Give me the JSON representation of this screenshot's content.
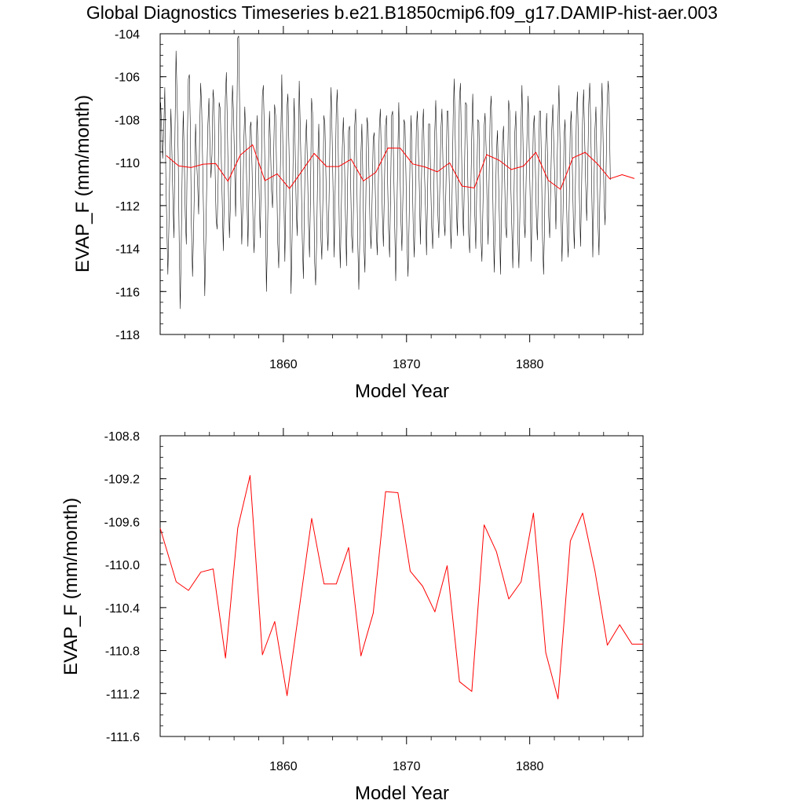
{
  "title": "Global Diagnostics Timeseries b.e21.B1850cmip6.f09_g17.DAMIP-hist-aer.003",
  "colors": {
    "monthly": "#000000",
    "annual": "#ff0000",
    "axis": "#000000"
  },
  "chart_data": [
    {
      "type": "line",
      "xlabel": "Model Year",
      "ylabel": "EVAP_F (mm/month)",
      "xlim": [
        1850,
        1889.2
      ],
      "ylim": [
        -118,
        -104
      ],
      "xticks": [
        1860,
        1870,
        1880
      ],
      "xtick_labels": [
        "1860",
        "1870",
        "1880"
      ],
      "yticks": [
        -118,
        -116,
        -114,
        -112,
        -110,
        -108,
        -106,
        -104
      ],
      "ytick_labels": [
        "-118",
        "-116",
        "-114",
        "-112",
        "-110",
        "-108",
        "-106",
        "-104"
      ],
      "series": [
        {
          "style": "thin black monthly line",
          "x_start": 1850.04,
          "x_step": 0.0833333,
          "values": [
            -107.2,
            -108.4,
            -109.8,
            -108.6,
            -106.5,
            -110.6,
            -113.0,
            -115.2,
            -113.0,
            -109.8,
            -107.5,
            -109.6,
            -111.8,
            -113.5,
            -108.5,
            -104.8,
            -106.9,
            -109.5,
            -113.6,
            -116.8,
            -114.0,
            -110.2,
            -107.6,
            -109.8,
            -112.5,
            -113.8,
            -109.0,
            -106.1,
            -105.9,
            -108.6,
            -112.9,
            -115.3,
            -113.3,
            -110.7,
            -108.2,
            -109.9,
            -111.0,
            -112.4,
            -108.6,
            -106.3,
            -107.5,
            -110.2,
            -113.0,
            -116.2,
            -113.5,
            -110.5,
            -108.2,
            -107.0,
            -109.2,
            -110.7,
            -109.6,
            -106.6,
            -107.2,
            -110.2,
            -112.6,
            -113.1,
            -110.9,
            -107.2,
            -107.5,
            -109.7,
            -111.9,
            -114.1,
            -111.5,
            -107.0,
            -105.8,
            -108.3,
            -111.3,
            -113.5,
            -111.9,
            -108.7,
            -106.4,
            -107.8,
            -110.2,
            -112.5,
            -109.2,
            -104.2,
            -104.1,
            -107.6,
            -111.2,
            -113.8,
            -112.2,
            -109.1,
            -107.4,
            -108.9,
            -111.4,
            -113.9,
            -111.2,
            -108.4,
            -108.1,
            -110.2,
            -112.8,
            -114.2,
            -112.4,
            -109.4,
            -107.8,
            -109.6,
            -111.5,
            -113.5,
            -110.6,
            -106.9,
            -106.4,
            -108.6,
            -111.7,
            -116.0,
            -113.7,
            -110.3,
            -107.6,
            -109.2,
            -111.3,
            -112.1,
            -110.0,
            -107.3,
            -107.8,
            -110.6,
            -113.7,
            -114.9,
            -112.1,
            -109.0,
            -105.9,
            -109.1,
            -111.4,
            -114.6,
            -111.6,
            -107.5,
            -106.8,
            -109.4,
            -112.3,
            -116.1,
            -113.5,
            -109.8,
            -107.0,
            -109.3,
            -112.0,
            -113.4,
            -110.0,
            -106.2,
            -108.3,
            -110.7,
            -113.6,
            -115.4,
            -112.0,
            -109.2,
            -108.0,
            -110.2,
            -112.8,
            -114.4,
            -111.4,
            -107.0,
            -107.7,
            -110.7,
            -114.6,
            -115.7,
            -113.5,
            -110.0,
            -108.2,
            -110.8,
            -113.4,
            -114.5,
            -111.8,
            -107.8,
            -108.2,
            -110.6,
            -112.8,
            -114.1,
            -111.9,
            -108.7,
            -106.5,
            -108.8,
            -111.5,
            -114.4,
            -111.2,
            -107.7,
            -106.6,
            -109.4,
            -112.9,
            -114.9,
            -112.2,
            -109.3,
            -107.9,
            -109.8,
            -112.5,
            -114.8,
            -111.2,
            -108.5,
            -108.3,
            -110.7,
            -113.4,
            -114.2,
            -111.7,
            -108.3,
            -107.5,
            -110.4,
            -113.6,
            -115.9,
            -113.4,
            -109.7,
            -108.2,
            -110.8,
            -113.9,
            -115.1,
            -111.3,
            -107.9,
            -108.3,
            -110.6,
            -113.0,
            -114.0,
            -111.6,
            -108.9,
            -108.6,
            -111.2,
            -113.2,
            -114.3,
            -111.1,
            -108.4,
            -107.5,
            -109.7,
            -112.4,
            -113.9,
            -111.2,
            -108.3,
            -107.8,
            -110.7,
            -113.1,
            -114.4,
            -111.4,
            -107.8,
            -107.6,
            -110.2,
            -112.9,
            -115.5,
            -112.8,
            -109.8,
            -107.2,
            -109.9,
            -112.6,
            -114.1,
            -111.5,
            -108.0,
            -108.2,
            -110.7,
            -113.8,
            -115.3,
            -112.9,
            -109.7,
            -107.8,
            -110.1,
            -112.8,
            -114.4,
            -112.1,
            -108.5,
            -107.6,
            -109.3,
            -111.2,
            -113.8,
            -111.0,
            -108.5,
            -107.5,
            -110.4,
            -112.1,
            -114.3,
            -111.4,
            -108.2,
            -108.2,
            -110.8,
            -113.0,
            -114.0,
            -111.7,
            -108.6,
            -107.1,
            -109.4,
            -112.3,
            -113.5,
            -111.1,
            -108.5,
            -107.5,
            -110.1,
            -112.7,
            -113.4,
            -110.9,
            -107.6,
            -107.6,
            -110.6,
            -112.7,
            -114.0,
            -111.3,
            -107.8,
            -106.1,
            -109.0,
            -112.0,
            -113.4,
            -110.6,
            -107.1,
            -106.3,
            -109.1,
            -112.0,
            -113.4,
            -110.4,
            -107.2,
            -107.3,
            -110.0,
            -113.3,
            -114.2,
            -111.7,
            -108.8,
            -106.8,
            -109.4,
            -112.4,
            -114.0,
            -110.9,
            -108.0,
            -108.1,
            -111.0,
            -113.5,
            -114.6,
            -111.8,
            -108.4,
            -107.7,
            -109.3,
            -112.0,
            -113.8,
            -110.6,
            -107.7,
            -106.9,
            -109.4,
            -112.9,
            -115.1,
            -112.6,
            -109.8,
            -108.5,
            -110.5,
            -112.7,
            -115.2,
            -112.2,
            -109.0,
            -108.3,
            -110.4,
            -113.0,
            -113.5,
            -110.5,
            -107.1,
            -107.6,
            -110.9,
            -112.9,
            -114.9,
            -112.4,
            -108.6,
            -107.6,
            -110.2,
            -113.6,
            -114.9,
            -112.2,
            -108.3,
            -106.4,
            -109.0,
            -112.6,
            -113.5,
            -110.8,
            -108.4,
            -106.9,
            -109.3,
            -111.8,
            -114.6,
            -111.5,
            -108.4,
            -107.8,
            -110.1,
            -112.5,
            -113.6,
            -111.1,
            -107.6,
            -107.6,
            -110.3,
            -113.6,
            -115.2,
            -112.8,
            -109.2,
            -107.7,
            -110.0,
            -112.5,
            -113.5,
            -111.1,
            -108.5,
            -107.3,
            -109.3,
            -111.0,
            -113.1,
            -110.6,
            -108.1,
            -106.4,
            -109.0,
            -112.3,
            -114.6,
            -112.3,
            -108.8,
            -108.0,
            -110.7,
            -113.3,
            -114.4,
            -111.9,
            -108.4,
            -107.6,
            -110.1,
            -112.6,
            -114.0,
            -111.2,
            -107.8,
            -106.7,
            -109.2,
            -111.7,
            -113.9,
            -111.3,
            -108.0,
            -106.6,
            -108.8,
            -110.9,
            -112.7,
            -110.6,
            -107.3,
            -106.3,
            -108.3,
            -111.3,
            -114.4,
            -111.6,
            -108.5,
            -107.4,
            -110.0,
            -112.8,
            -114.3,
            -111.1,
            -108.2,
            -106.3,
            -108.9,
            -111.8,
            -112.9,
            -110.2,
            -107.1,
            -106.2,
            -107.5,
            -110.8
          ]
        },
        {
          "name": "",
          "style": "red annual mean line",
          "x": [
            1850.5,
            1851.5,
            1852.5,
            1853.5,
            1854.5,
            1855.5,
            1856.5,
            1857.5,
            1858.5,
            1859.5,
            1860.5,
            1861.5,
            1862.5,
            1863.5,
            1864.5,
            1865.5,
            1866.5,
            1867.5,
            1868.5,
            1869.5,
            1870.5,
            1871.5,
            1872.5,
            1873.5,
            1874.5,
            1875.5,
            1876.5,
            1877.5,
            1878.5,
            1879.5,
            1880.5,
            1881.5,
            1882.5,
            1883.5,
            1884.5,
            1885.5,
            1886.5,
            1887.5,
            1888.5
          ],
          "values": [
            -109.67,
            -110.15,
            -110.23,
            -110.07,
            -110.04,
            -110.87,
            -109.65,
            -109.17,
            -110.84,
            -110.52,
            -111.21,
            -110.4,
            -109.57,
            -110.18,
            -110.18,
            -109.84,
            -110.85,
            -110.45,
            -109.32,
            -109.33,
            -110.06,
            -110.2,
            -110.43,
            -110.01,
            -111.09,
            -111.18,
            -109.63,
            -109.88,
            -110.32,
            -110.16,
            -109.52,
            -110.82,
            -111.24,
            -109.78,
            -109.52,
            -110.06,
            -110.75,
            -110.56,
            -110.74
          ]
        }
      ]
    },
    {
      "type": "line",
      "xlabel": "Model Year",
      "ylabel": "EVAP_F (mm/month)",
      "xlim": [
        1850,
        1889.2
      ],
      "ylim": [
        -111.6,
        -108.8
      ],
      "xticks": [
        1860,
        1870,
        1880
      ],
      "xtick_labels": [
        "1860",
        "1870",
        "1880"
      ],
      "yticks": [
        -111.6,
        -111.2,
        -110.8,
        -110.4,
        -110.0,
        -109.6,
        -109.2,
        -108.8
      ],
      "ytick_labels": [
        "-111.6",
        "-111.2",
        "-110.8",
        "-110.4",
        "-110.0",
        "-109.6",
        "-109.2",
        "-108.8"
      ],
      "series": [
        {
          "name": "",
          "style": "red annual mean line",
          "x": [
            1850.0,
            1851.3,
            1852.3,
            1853.3,
            1854.3,
            1855.3,
            1856.3,
            1857.3,
            1858.3,
            1859.3,
            1860.3,
            1861.3,
            1862.3,
            1863.3,
            1864.3,
            1865.3,
            1866.3,
            1867.3,
            1868.3,
            1869.3,
            1870.3,
            1871.3,
            1872.3,
            1873.3,
            1874.3,
            1875.3,
            1876.3,
            1877.3,
            1878.3,
            1879.3,
            1880.3,
            1881.3,
            1882.3,
            1883.3,
            1884.3,
            1885.3,
            1886.3,
            1887.3,
            1888.3,
            1889.2
          ],
          "values": [
            -109.66,
            -110.16,
            -110.24,
            -110.07,
            -110.04,
            -110.87,
            -109.66,
            -109.17,
            -110.84,
            -110.53,
            -111.22,
            -110.4,
            -109.57,
            -110.18,
            -110.18,
            -109.84,
            -110.85,
            -110.45,
            -109.32,
            -109.33,
            -110.06,
            -110.2,
            -110.44,
            -110.01,
            -111.09,
            -111.18,
            -109.63,
            -109.88,
            -110.32,
            -110.16,
            -109.52,
            -110.82,
            -111.25,
            -109.78,
            -109.52,
            -110.06,
            -110.75,
            -110.56,
            -110.74,
            -110.74
          ]
        }
      ]
    }
  ]
}
